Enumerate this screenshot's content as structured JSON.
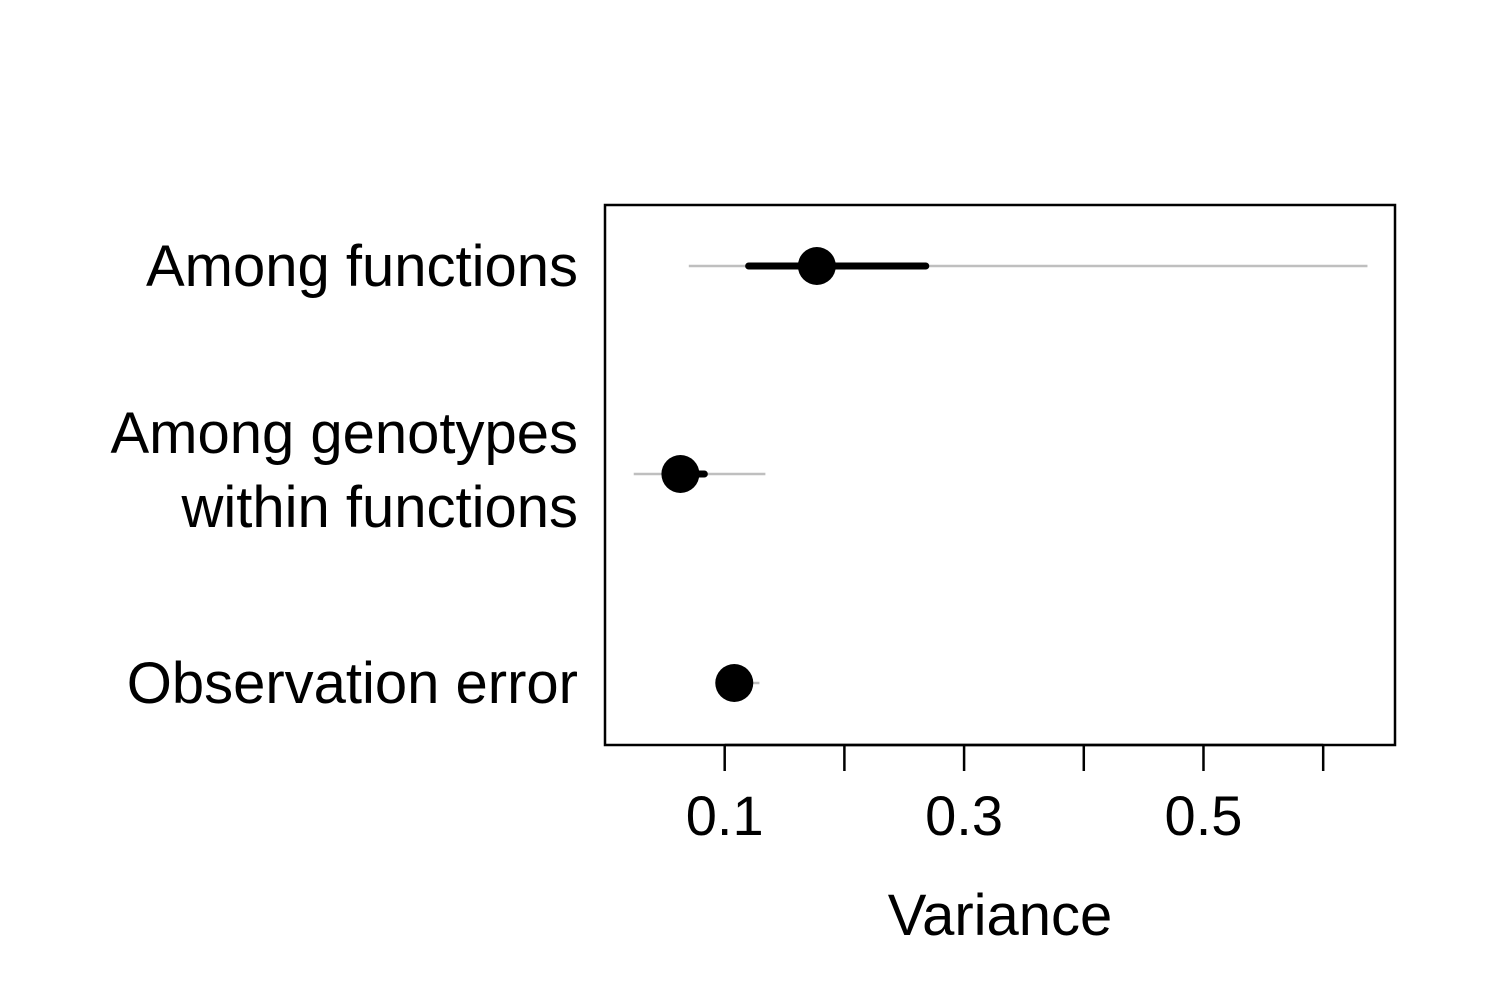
{
  "chart_data": {
    "type": "scatter",
    "title": "",
    "xlabel": "Variance",
    "ylabel": "",
    "xlim": [
      0.0,
      0.66
    ],
    "ticks": [
      0.1,
      0.2,
      0.3,
      0.4,
      0.5,
      0.6
    ],
    "tick_labels": [
      {
        "value": 0.1,
        "label": "0.1"
      },
      {
        "value": 0.3,
        "label": "0.3"
      },
      {
        "value": 0.5,
        "label": "0.5"
      }
    ],
    "grid": false,
    "legend": "none",
    "colors": {
      "point": "#000000",
      "inner_interval": "#000000",
      "outer_interval": "#bfbfbf"
    },
    "categories": [
      {
        "label_lines": [
          "Among functions"
        ],
        "estimate": 0.177,
        "inner": [
          0.12,
          0.268
        ],
        "outer": [
          0.07,
          0.637
        ]
      },
      {
        "label_lines": [
          "Among genotypes",
          "within functions"
        ],
        "estimate": 0.063,
        "inner": [
          0.058,
          0.083
        ],
        "outer": [
          0.024,
          0.134
        ]
      },
      {
        "label_lines": [
          "Observation error"
        ],
        "estimate": 0.108,
        "inner": [
          0.099,
          0.118
        ],
        "outer": [
          0.093,
          0.129
        ]
      }
    ]
  }
}
